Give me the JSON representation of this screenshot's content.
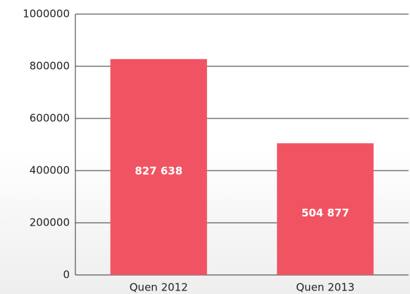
{
  "chart_data": {
    "type": "bar",
    "categories": [
      "Quen 2012",
      "Quen 2013"
    ],
    "values": [
      827638,
      504877
    ],
    "value_labels": [
      "827 638",
      "504 877"
    ],
    "color": "#f05463",
    "ylim": [
      0,
      1000000
    ],
    "yticks": [
      0,
      200000,
      400000,
      600000,
      800000,
      1000000
    ],
    "grid": true
  }
}
